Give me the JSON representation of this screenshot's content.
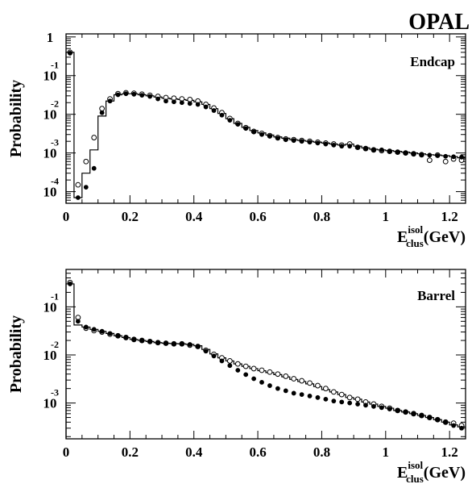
{
  "experiment_label": "OPAL",
  "chart_data": [
    {
      "type": "scatter",
      "panel_label": "Endcap",
      "ylabel": "Probability",
      "xlabel": "E",
      "xlabel_sup": "isol",
      "xlabel_sub": "clus",
      "xlabel_unit": "(GeV)",
      "xlim": [
        0,
        1.25
      ],
      "ylim": [
        5e-05,
        1.2
      ],
      "yscale": "log",
      "xticks": [
        0,
        0.2,
        0.4,
        0.6,
        0.8,
        1,
        1.2
      ],
      "xtick_labels": [
        "0",
        "0.2",
        "0.4",
        "0.6",
        "0.8",
        "1",
        "1.2"
      ],
      "ytick_labels": [
        {
          "value": 1,
          "base": "1",
          "exp": ""
        },
        {
          "value": 0.1,
          "base": "10",
          "exp": "-1"
        },
        {
          "value": 0.01,
          "base": "10",
          "exp": "-2"
        },
        {
          "value": 0.001,
          "base": "10",
          "exp": "-3"
        },
        {
          "value": 0.0001,
          "base": "10",
          "exp": "-4"
        }
      ],
      "series": [
        {
          "style": "histogram",
          "edges": [
            0,
            0.025,
            0.05,
            0.075,
            0.1,
            0.125,
            0.15,
            0.175,
            0.2,
            0.225,
            0.25,
            0.275,
            0.3,
            0.325,
            0.35,
            0.375,
            0.4,
            0.425,
            0.45,
            0.475,
            0.5,
            0.525,
            0.55,
            0.575,
            0.6,
            0.625,
            0.65,
            0.675,
            0.7,
            0.725,
            0.75,
            0.775,
            0.8,
            0.825,
            0.85,
            0.875,
            0.9,
            0.925,
            0.95,
            0.975,
            1.0,
            1.025,
            1.05,
            1.075,
            1.1,
            1.125,
            1.15,
            1.175,
            1.2,
            1.225,
            1.25
          ],
          "values": [
            0.4,
            7e-05,
            0.0003,
            0.0012,
            0.009,
            0.022,
            0.032,
            0.034,
            0.034,
            0.032,
            0.03,
            0.028,
            0.026,
            0.025,
            0.024,
            0.023,
            0.021,
            0.018,
            0.014,
            0.0105,
            0.0077,
            0.0058,
            0.0046,
            0.0038,
            0.0033,
            0.0029,
            0.0026,
            0.0024,
            0.0022,
            0.0021,
            0.002,
            0.0019,
            0.0018,
            0.0017,
            0.0016,
            0.0017,
            0.0015,
            0.00135,
            0.00125,
            0.0012,
            0.00115,
            0.0011,
            0.00105,
            0.001,
            0.00095,
            0.0009,
            0.00088,
            0.00085,
            0.0008,
            0.00075
          ]
        },
        {
          "style": "open-circle",
          "x": [
            0.0125,
            0.0375,
            0.0625,
            0.0875,
            0.1125,
            0.1375,
            0.1625,
            0.1875,
            0.2125,
            0.2375,
            0.2625,
            0.2875,
            0.3125,
            0.3375,
            0.3625,
            0.3875,
            0.4125,
            0.4375,
            0.4625,
            0.4875,
            0.5125,
            0.5375,
            0.5625,
            0.5875,
            0.6125,
            0.6375,
            0.6625,
            0.6875,
            0.7125,
            0.7375,
            0.7625,
            0.7875,
            0.8125,
            0.8375,
            0.8625,
            0.8875,
            0.9125,
            0.9375,
            0.9625,
            0.9875,
            1.0125,
            1.0375,
            1.0625,
            1.0875,
            1.1125,
            1.1375,
            1.1625,
            1.1875,
            1.2125,
            1.2375
          ],
          "y": [
            0.4,
            0.00015,
            0.0006,
            0.0025,
            0.014,
            0.025,
            0.034,
            0.036,
            0.035,
            0.033,
            0.031,
            0.029,
            0.027,
            0.026,
            0.025,
            0.024,
            0.022,
            0.018,
            0.0145,
            0.011,
            0.0078,
            0.0058,
            0.0045,
            0.0036,
            0.0032,
            0.0028,
            0.0025,
            0.0023,
            0.0022,
            0.0021,
            0.002,
            0.0019,
            0.0018,
            0.0017,
            0.0016,
            0.0017,
            0.0014,
            0.0013,
            0.0012,
            0.00115,
            0.0011,
            0.00105,
            0.001,
            0.00095,
            0.0009,
            0.00065,
            0.00088,
            0.0006,
            0.0007,
            0.00065
          ]
        },
        {
          "style": "filled-circle",
          "x": [
            0.0125,
            0.0375,
            0.0625,
            0.0875,
            0.1125,
            0.1375,
            0.1625,
            0.1875,
            0.2125,
            0.2375,
            0.2625,
            0.2875,
            0.3125,
            0.3375,
            0.3625,
            0.3875,
            0.4125,
            0.4375,
            0.4625,
            0.4875,
            0.5125,
            0.5375,
            0.5625,
            0.5875,
            0.6125,
            0.6375,
            0.6625,
            0.6875,
            0.7125,
            0.7375,
            0.7625,
            0.7875,
            0.8125,
            0.8375,
            0.8625,
            0.8875,
            0.9125,
            0.9375,
            0.9625,
            0.9875,
            1.0125,
            1.0375,
            1.0625,
            1.0875,
            1.1125,
            1.1375,
            1.1625,
            1.1875,
            1.2125,
            1.2375
          ],
          "y": [
            0.38,
            7e-05,
            0.00013,
            0.0004,
            0.011,
            0.022,
            0.032,
            0.034,
            0.033,
            0.031,
            0.029,
            0.025,
            0.022,
            0.021,
            0.02,
            0.019,
            0.018,
            0.0155,
            0.0125,
            0.0095,
            0.007,
            0.0055,
            0.0043,
            0.0035,
            0.003,
            0.0027,
            0.0024,
            0.0022,
            0.0021,
            0.002,
            0.0019,
            0.0018,
            0.0017,
            0.0016,
            0.0015,
            0.0015,
            0.0014,
            0.0013,
            0.0012,
            0.0012,
            0.0011,
            0.00105,
            0.001,
            0.00095,
            0.0009,
            0.00088,
            0.00085,
            0.00082,
            0.0008,
            0.00078
          ]
        }
      ]
    },
    {
      "type": "scatter",
      "panel_label": "Barrel",
      "ylabel": "Probability",
      "xlabel": "E",
      "xlabel_sup": "isol",
      "xlabel_sub": "clus",
      "xlabel_unit": "(GeV)",
      "xlim": [
        0,
        1.25
      ],
      "ylim": [
        0.00018,
        0.6
      ],
      "yscale": "log",
      "xticks": [
        0,
        0.2,
        0.4,
        0.6,
        0.8,
        1,
        1.2
      ],
      "xtick_labels": [
        "0",
        "0.2",
        "0.4",
        "0.6",
        "0.8",
        "1",
        "1.2"
      ],
      "ytick_labels": [
        {
          "value": 0.1,
          "base": "10",
          "exp": "-1"
        },
        {
          "value": 0.01,
          "base": "10",
          "exp": "-2"
        },
        {
          "value": 0.001,
          "base": "10",
          "exp": "-3"
        }
      ],
      "series": [
        {
          "style": "histogram",
          "edges": [
            0,
            0.025,
            0.05,
            0.075,
            0.1,
            0.125,
            0.15,
            0.175,
            0.2,
            0.225,
            0.25,
            0.275,
            0.3,
            0.325,
            0.35,
            0.375,
            0.4,
            0.425,
            0.45,
            0.475,
            0.5,
            0.525,
            0.55,
            0.575,
            0.6,
            0.625,
            0.65,
            0.675,
            0.7,
            0.725,
            0.75,
            0.775,
            0.8,
            0.825,
            0.85,
            0.875,
            0.9,
            0.925,
            0.95,
            0.975,
            1.0,
            1.025,
            1.05,
            1.075,
            1.1,
            1.125,
            1.15,
            1.175,
            1.2,
            1.225,
            1.25
          ],
          "values": [
            0.3,
            0.042,
            0.038,
            0.034,
            0.031,
            0.028,
            0.025,
            0.023,
            0.021,
            0.02,
            0.019,
            0.018,
            0.0175,
            0.0172,
            0.017,
            0.0165,
            0.0155,
            0.013,
            0.0105,
            0.0087,
            0.0075,
            0.0065,
            0.0058,
            0.0052,
            0.0047,
            0.0043,
            0.0039,
            0.0035,
            0.0031,
            0.0028,
            0.0025,
            0.0022,
            0.0019,
            0.0017,
            0.0015,
            0.0013,
            0.0012,
            0.00105,
            0.00095,
            0.00085,
            0.00078,
            0.0007,
            0.00065,
            0.0006,
            0.00055,
            0.0005,
            0.00045,
            0.0004,
            0.00035,
            0.00032
          ]
        },
        {
          "style": "open-circle",
          "x": [
            0.0125,
            0.0375,
            0.0625,
            0.0875,
            0.1125,
            0.1375,
            0.1625,
            0.1875,
            0.2125,
            0.2375,
            0.2625,
            0.2875,
            0.3125,
            0.3375,
            0.3625,
            0.3875,
            0.4125,
            0.4375,
            0.4625,
            0.4875,
            0.5125,
            0.5375,
            0.5625,
            0.5875,
            0.6125,
            0.6375,
            0.6625,
            0.6875,
            0.7125,
            0.7375,
            0.7625,
            0.7875,
            0.8125,
            0.8375,
            0.8625,
            0.8875,
            0.9125,
            0.9375,
            0.9625,
            0.9875,
            1.0125,
            1.0375,
            1.0625,
            1.0875,
            1.1125,
            1.1375,
            1.1625,
            1.1875,
            1.2125,
            1.2375
          ],
          "y": [
            0.32,
            0.06,
            0.036,
            0.032,
            0.03,
            0.027,
            0.025,
            0.023,
            0.021,
            0.02,
            0.019,
            0.018,
            0.0175,
            0.017,
            0.017,
            0.016,
            0.015,
            0.0125,
            0.0103,
            0.0087,
            0.0075,
            0.0065,
            0.0058,
            0.0052,
            0.0048,
            0.0044,
            0.004,
            0.0036,
            0.0032,
            0.0029,
            0.0026,
            0.0023,
            0.002,
            0.0017,
            0.0015,
            0.0013,
            0.0012,
            0.00105,
            0.00095,
            0.00085,
            0.00078,
            0.0007,
            0.00065,
            0.0006,
            0.00055,
            0.0005,
            0.00045,
            0.0004,
            0.00038,
            0.00034
          ]
        },
        {
          "style": "filled-circle",
          "x": [
            0.0125,
            0.0375,
            0.0625,
            0.0875,
            0.1125,
            0.1375,
            0.1625,
            0.1875,
            0.2125,
            0.2375,
            0.2625,
            0.2875,
            0.3125,
            0.3375,
            0.3625,
            0.3875,
            0.4125,
            0.4375,
            0.4625,
            0.4875,
            0.5125,
            0.5375,
            0.5625,
            0.5875,
            0.6125,
            0.6375,
            0.6625,
            0.6875,
            0.7125,
            0.7375,
            0.7625,
            0.7875,
            0.8125,
            0.8375,
            0.8625,
            0.8875,
            0.9125,
            0.9375,
            0.9625,
            0.9875,
            1.0125,
            1.0375,
            1.0625,
            1.0875,
            1.1125,
            1.1375,
            1.1625,
            1.1875,
            1.2125,
            1.2375
          ],
          "y": [
            0.3,
            0.05,
            0.038,
            0.034,
            0.031,
            0.028,
            0.025,
            0.023,
            0.021,
            0.02,
            0.019,
            0.018,
            0.0175,
            0.017,
            0.017,
            0.0165,
            0.015,
            0.012,
            0.0095,
            0.0075,
            0.006,
            0.0048,
            0.0039,
            0.0032,
            0.0027,
            0.0023,
            0.002,
            0.0018,
            0.0016,
            0.0015,
            0.0014,
            0.0013,
            0.0012,
            0.0011,
            0.00105,
            0.001,
            0.00095,
            0.0009,
            0.00085,
            0.0008,
            0.00075,
            0.0007,
            0.00065,
            0.0006,
            0.00055,
            0.0005,
            0.00045,
            0.0004,
            0.00034,
            0.0003
          ]
        }
      ]
    }
  ]
}
